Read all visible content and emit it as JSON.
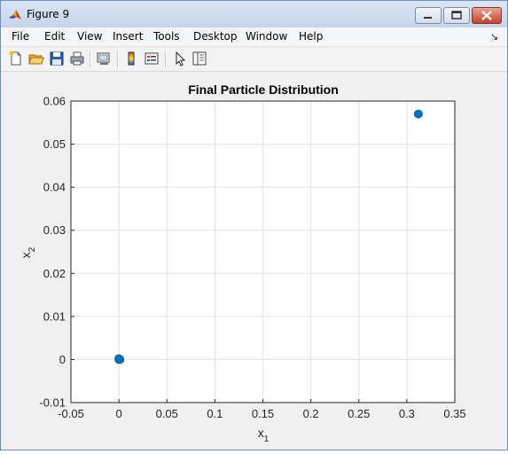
{
  "window": {
    "title": "Figure 9",
    "icons": [
      "matlab-logo-icon",
      "minimize-icon",
      "maximize-icon",
      "close-icon"
    ]
  },
  "menubar": {
    "items": [
      "File",
      "Edit",
      "View",
      "Insert",
      "Tools",
      "Desktop",
      "Window",
      "Help"
    ],
    "overflow_icon": "dock-arrow-icon"
  },
  "toolbar": {
    "icons": [
      "new-figure-icon",
      "open-file-icon",
      "save-icon",
      "print-icon",
      "link-plot-icon",
      "insert-colorbar-icon",
      "insert-legend-icon",
      "edit-plot-icon",
      "property-inspector-icon"
    ]
  },
  "colors": {
    "marker": "#0072bd",
    "axes_bg": "#ffffff",
    "figure_bg": "#f0f0f0",
    "grid": "#e2e2e2"
  },
  "chart_data": {
    "type": "scatter",
    "title": "Final Particle Distribution",
    "xlabel": "x",
    "xlabel_sub": "1",
    "ylabel": "x",
    "ylabel_sub": "2",
    "xlim": [
      -0.05,
      0.35
    ],
    "ylim": [
      -0.01,
      0.06
    ],
    "xticks": [
      -0.05,
      0,
      0.05,
      0.1,
      0.15,
      0.2,
      0.25,
      0.3,
      0.35
    ],
    "xtick_labels": [
      "-0.05",
      "0",
      "0.05",
      "0.1",
      "0.15",
      "0.2",
      "0.25",
      "0.3",
      "0.35"
    ],
    "yticks": [
      -0.01,
      0,
      0.01,
      0.02,
      0.03,
      0.04,
      0.05,
      0.06
    ],
    "ytick_labels": [
      "-0.01",
      "0",
      "0.01",
      "0.02",
      "0.03",
      "0.04",
      "0.05",
      "0.06"
    ],
    "grid": true,
    "points": [
      {
        "x": 0.0,
        "y": 0.0
      },
      {
        "x": 0.0,
        "y": 0.0002
      },
      {
        "x": 0.001,
        "y": 0.0
      },
      {
        "x": 0.312,
        "y": 0.057
      }
    ]
  }
}
